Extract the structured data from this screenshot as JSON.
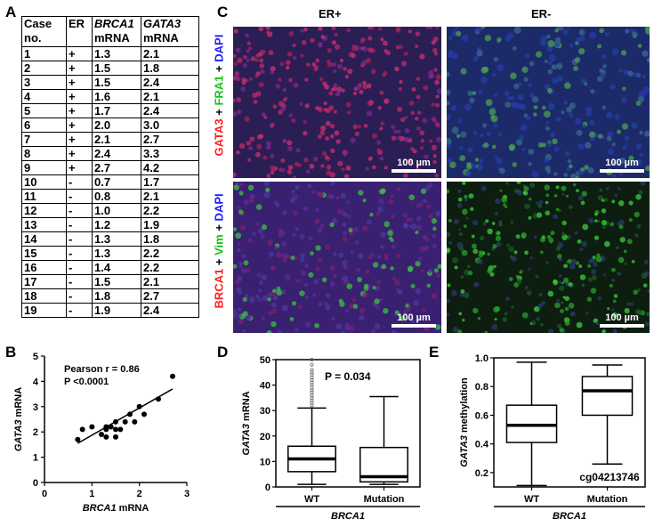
{
  "panel_letters": {
    "a": "A",
    "b": "B",
    "c": "C",
    "d": "D",
    "e": "E"
  },
  "table": {
    "h_case": "Case",
    "h_case2": "no.",
    "h_er": "ER",
    "h_brca1": "BRCA1",
    "h_brca1b": "mRNA",
    "h_gata3": "GATA3",
    "h_gata3b": "mRNA",
    "rows": [
      [
        "1",
        "+",
        "1.3",
        "2.1"
      ],
      [
        "2",
        "+",
        "1.5",
        "1.8"
      ],
      [
        "3",
        "+",
        "1.5",
        "2.4"
      ],
      [
        "4",
        "+",
        "1.6",
        "2.1"
      ],
      [
        "5",
        "+",
        "1.7",
        "2.4"
      ],
      [
        "6",
        "+",
        "2.0",
        "3.0"
      ],
      [
        "7",
        "+",
        "2.1",
        "2.7"
      ],
      [
        "8",
        "+",
        "2.4",
        "3.3"
      ],
      [
        "9",
        "+",
        "2.7",
        "4.2"
      ],
      [
        "10",
        "-",
        "0.7",
        "1.7"
      ],
      [
        "11",
        "-",
        "0.8",
        "2.1"
      ],
      [
        "12",
        "-",
        "1.0",
        "2.2"
      ],
      [
        "13",
        "-",
        "1.2",
        "1.9"
      ],
      [
        "14",
        "-",
        "1.3",
        "1.8"
      ],
      [
        "15",
        "-",
        "1.3",
        "2.2"
      ],
      [
        "16",
        "-",
        "1.4",
        "2.2"
      ],
      [
        "17",
        "-",
        "1.5",
        "2.1"
      ],
      [
        "18",
        "-",
        "1.8",
        "2.7"
      ],
      [
        "19",
        "-",
        "1.9",
        "2.4"
      ]
    ]
  },
  "micro": {
    "col_er_pos": "ER+",
    "col_er_neg": "ER-",
    "row1": {
      "a": "GATA3",
      "b": " + ",
      "c": "FRA1",
      "d": " + ",
      "e": "DAPI"
    },
    "row2": {
      "a": "BRCA1",
      "b": " + ",
      "c": "Vim",
      "d": " + ",
      "e": "DAPI"
    },
    "scale": "100 µm"
  },
  "chart_data": [
    {
      "type": "scatter",
      "panel": "B",
      "xlabel_italic": "BRCA1",
      "xlabel_rest": " mRNA",
      "ylabel_italic": "GATA3",
      "ylabel_rest": " mRNA",
      "xlim": [
        0,
        3
      ],
      "ylim": [
        0,
        5
      ],
      "xticks": [
        "0",
        "1",
        "2",
        "3"
      ],
      "yticks": [
        "0",
        "1",
        "2",
        "3",
        "4",
        "5"
      ],
      "annotation1": "Pearson r = 0.86",
      "annotation2": "P <0.0001",
      "points": [
        [
          1.3,
          2.1
        ],
        [
          1.5,
          1.8
        ],
        [
          1.5,
          2.4
        ],
        [
          1.6,
          2.1
        ],
        [
          1.7,
          2.4
        ],
        [
          2.0,
          3.0
        ],
        [
          2.1,
          2.7
        ],
        [
          2.4,
          3.3
        ],
        [
          2.7,
          4.2
        ],
        [
          0.7,
          1.7
        ],
        [
          0.8,
          2.1
        ],
        [
          1.0,
          2.2
        ],
        [
          1.2,
          1.9
        ],
        [
          1.3,
          1.8
        ],
        [
          1.3,
          2.2
        ],
        [
          1.4,
          2.2
        ],
        [
          1.5,
          2.1
        ],
        [
          1.8,
          2.7
        ],
        [
          1.9,
          2.4
        ]
      ],
      "fit_line": {
        "x": [
          0.7,
          2.7
        ],
        "y": [
          1.55,
          3.7
        ]
      }
    },
    {
      "type": "box",
      "panel": "D",
      "ylabel_italic": "GATA3",
      "ylabel_rest": " mRNA",
      "ylim": [
        0,
        50
      ],
      "yticks": [
        "0",
        "10",
        "20",
        "30",
        "40",
        "50"
      ],
      "categories": [
        "WT",
        "Mutation"
      ],
      "group_label": "BRCA1",
      "annotation": "P = 0.034",
      "boxes": [
        {
          "min": 1,
          "q1": 6,
          "median": 11,
          "q3": 16,
          "max": 31,
          "outliers": [
            32,
            33,
            34,
            35,
            36,
            37,
            38,
            39,
            40,
            41,
            42,
            43,
            44,
            45,
            46,
            48,
            50
          ]
        },
        {
          "min": 1,
          "q1": 2,
          "median": 4,
          "q3": 15.5,
          "max": 35.5,
          "outliers": []
        }
      ]
    },
    {
      "type": "box",
      "panel": "E",
      "ylabel_italic": "GATA3",
      "ylabel_rest": " methylation",
      "ylim": [
        0.1,
        1.0
      ],
      "yticks": [
        "0.2",
        "0.4",
        "0.6",
        "0.8",
        "1.0"
      ],
      "categories": [
        "WT",
        "Mutation"
      ],
      "group_label": "BRCA1",
      "annotation": "cg04213746",
      "boxes": [
        {
          "min": 0.11,
          "q1": 0.41,
          "median": 0.53,
          "q3": 0.67,
          "max": 0.97,
          "outliers": []
        },
        {
          "min": 0.26,
          "q1": 0.6,
          "median": 0.77,
          "q3": 0.87,
          "max": 0.95,
          "outliers": []
        }
      ]
    }
  ]
}
